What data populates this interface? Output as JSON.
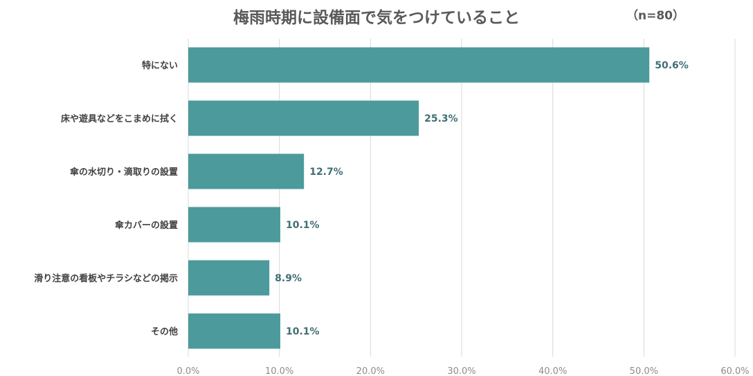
{
  "chart_data": {
    "type": "bar",
    "orientation": "horizontal",
    "title": "梅雨時期に設備面で気をつけていること",
    "sample_size_label": "（n=80）",
    "categories": [
      "特にない",
      "床や遊具などをこまめに拭く",
      "傘の水切り・滴取りの設置",
      "傘カバーの設置",
      "滑り注意の看板やチラシなどの掲示",
      "その他"
    ],
    "values": [
      50.6,
      25.3,
      12.7,
      10.1,
      8.9,
      10.1
    ],
    "value_labels": [
      "50.6%",
      "25.3%",
      "12.7%",
      "10.1%",
      "8.9%",
      "10.1%"
    ],
    "xlim": [
      0,
      60
    ],
    "x_ticks": [
      0,
      10,
      20,
      30,
      40,
      50,
      60
    ],
    "x_tick_labels": [
      "0.0%",
      "10.0%",
      "20.0%",
      "30.0%",
      "40.0%",
      "50.0%",
      "60.0%"
    ],
    "grid": true,
    "legend": "none",
    "bar_color": "#4c9a9c",
    "value_label_color": "#3f6f74"
  }
}
